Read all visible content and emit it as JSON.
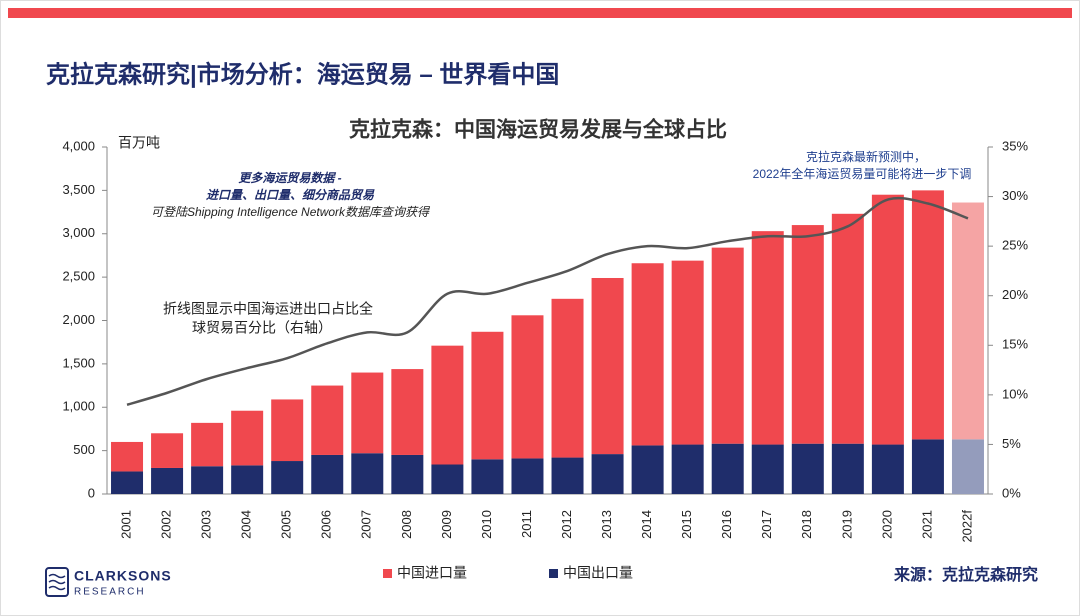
{
  "page_title": "克拉克森研究|市场分析：海运贸易 – 世界看中国",
  "logo": {
    "name": "CLARKSONS",
    "sub": "RESEARCH"
  },
  "source": "来源：克拉克森研究",
  "chart_data": {
    "type": "stacked_bar_line",
    "title": "克拉克森：中国海运贸易发展与全球占比",
    "y_label": "百万吨",
    "annotations": [
      {
        "lines": [
          "更多海运贸易数据 -",
          "进口量、出口量、细分商品贸易",
          "可登陆Shipping Intelligence Network数据库查询获得"
        ]
      },
      {
        "lines": [
          "克拉克森最新预测中，",
          "2022年全年海运贸易量可能将进一步下调"
        ]
      },
      {
        "lines": [
          "折线图显示中国海运进出口占比全",
          "球贸易百分比（右轴）"
        ]
      }
    ],
    "categories": [
      "2001",
      "2002",
      "2003",
      "2004",
      "2005",
      "2006",
      "2007",
      "2008",
      "2009",
      "2010",
      "2011",
      "2012",
      "2013",
      "2014",
      "2015",
      "2016",
      "2017",
      "2018",
      "2019",
      "2020",
      "2021",
      "2022f"
    ],
    "series": [
      {
        "name": "中国出口量",
        "color": "#1f2d6b",
        "colors": [
          "#1f2d6b",
          "#1f2d6b",
          "#1f2d6b",
          "#1f2d6b",
          "#1f2d6b",
          "#1f2d6b",
          "#1f2d6b",
          "#1f2d6b",
          "#1f2d6b",
          "#1f2d6b",
          "#1f2d6b",
          "#1f2d6b",
          "#1f2d6b",
          "#1f2d6b",
          "#1f2d6b",
          "#1f2d6b",
          "#1f2d6b",
          "#1f2d6b",
          "#1f2d6b",
          "#1f2d6b",
          "#1f2d6b",
          "#949cbc"
        ],
        "values": [
          260,
          300,
          320,
          330,
          380,
          450,
          470,
          450,
          340,
          400,
          410,
          420,
          460,
          560,
          570,
          580,
          570,
          580,
          580,
          570,
          630,
          630
        ]
      },
      {
        "name": "中国进口量",
        "color": "#f0484e",
        "colors": [
          "#f0484e",
          "#f0484e",
          "#f0484e",
          "#f0484e",
          "#f0484e",
          "#f0484e",
          "#f0484e",
          "#f0484e",
          "#f0484e",
          "#f0484e",
          "#f0484e",
          "#f0484e",
          "#f0484e",
          "#f0484e",
          "#f0484e",
          "#f0484e",
          "#f0484e",
          "#f0484e",
          "#f0484e",
          "#f0484e",
          "#f0484e",
          "#f5a4a4"
        ],
        "values": [
          340,
          400,
          500,
          630,
          710,
          800,
          930,
          990,
          1370,
          1470,
          1650,
          1830,
          2030,
          2100,
          2120,
          2260,
          2460,
          2520,
          2650,
          2880,
          2870,
          2730
        ]
      }
    ],
    "line": {
      "axis": "y2",
      "color": "#555555",
      "values": [
        9,
        10.2,
        11.6,
        12.7,
        13.7,
        15.2,
        16.3,
        16.3,
        20.2,
        20.2,
        21.3,
        22.5,
        24.2,
        25,
        24.8,
        25.5,
        26,
        26,
        27,
        29.7,
        29.3,
        27.8
      ]
    },
    "ylim": [
      0,
      4000
    ],
    "yticks": [
      0,
      500,
      {
        "value": 1000,
        "label": "1,000"
      },
      {
        "value": 1500,
        "label": "1,500"
      },
      {
        "value": 2000,
        "label": "2,000"
      },
      {
        "value": 2500,
        "label": "2,500"
      },
      {
        "value": 3000,
        "label": "3,000"
      },
      {
        "value": 3500,
        "label": "3,500"
      },
      {
        "value": 4000,
        "label": "4,000"
      }
    ],
    "y2lim": [
      0,
      35
    ],
    "y2ticks": [
      {
        "value": 0,
        "label": "0%"
      },
      {
        "value": 5,
        "label": "5%"
      },
      {
        "value": 10,
        "label": "10%"
      },
      {
        "value": 15,
        "label": "15%"
      },
      {
        "value": 20,
        "label": "20%"
      },
      {
        "value": 25,
        "label": "25%"
      },
      {
        "value": 30,
        "label": "30%"
      },
      {
        "value": 35,
        "label": "35%"
      }
    ],
    "grid": false
  }
}
